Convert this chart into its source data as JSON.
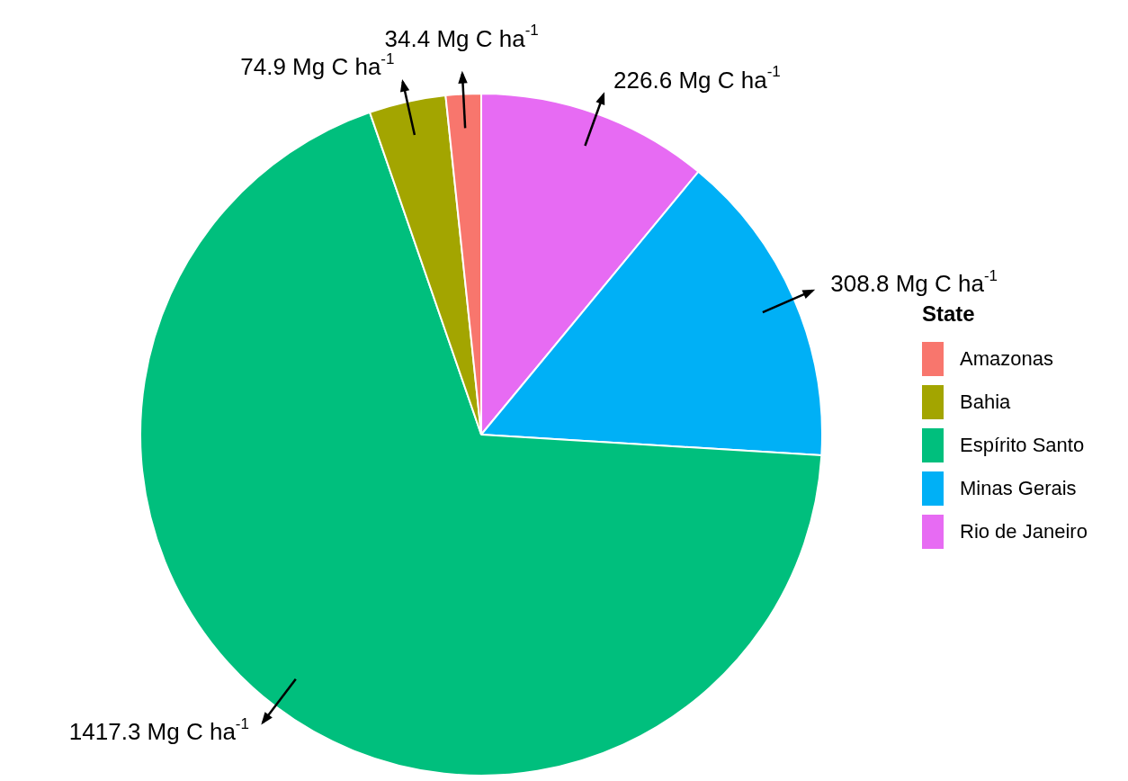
{
  "chart_data": {
    "type": "pie",
    "categories": [
      "Amazonas",
      "Bahia",
      "Espírito Santo",
      "Minas Gerais",
      "Rio de Janeiro"
    ],
    "values": [
      34.4,
      74.9,
      1417.3,
      308.8,
      226.6
    ],
    "colors": [
      "#f8766d",
      "#a3a500",
      "#00bf7d",
      "#00b0f6",
      "#e76bf3"
    ],
    "value_labels": [
      "34.4 Mg C ha$^{-1}$",
      "74.9 Mg C ha$^{-1}$",
      "1417.3 Mg C ha$^{-1}$",
      "308.8 Mg C ha$^{-1}$",
      "226.6 Mg C ha$^{-1}$"
    ],
    "legend": "right",
    "legend_title": "State"
  }
}
